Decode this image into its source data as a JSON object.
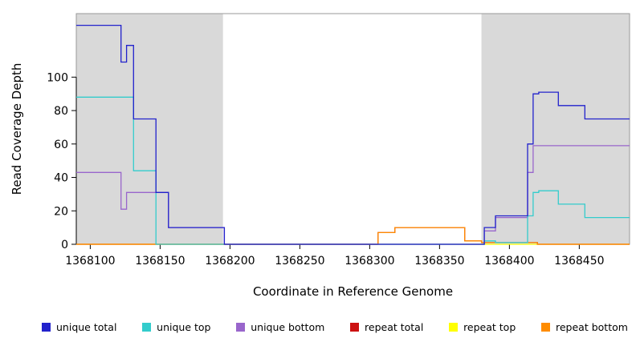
{
  "chart_data": {
    "type": "line",
    "step": true,
    "title": "",
    "xlabel": "Coordinate in Reference Genome",
    "ylabel": "Read Coverage Depth",
    "xlim": [
      1368090,
      1368486
    ],
    "ylim": [
      0,
      138
    ],
    "x_ticks": [
      1368100,
      1368150,
      1368200,
      1368250,
      1368300,
      1368350,
      1368400,
      1368450
    ],
    "y_ticks": [
      0,
      20,
      40,
      60,
      80,
      100
    ],
    "grid": false,
    "legend_position": "bottom",
    "region_color": "#D9D9D9",
    "box_color": "#999999",
    "shaded_regions": [
      {
        "from": 1368090,
        "to": 1368195
      },
      {
        "from": 1368380,
        "to": 1368486
      }
    ],
    "draw_order": [
      4,
      3,
      5,
      2,
      1,
      0
    ],
    "series": [
      {
        "name": "unique total",
        "color": "#2222CC",
        "points": [
          [
            1368090,
            131
          ],
          [
            1368122,
            131
          ],
          [
            1368122,
            109
          ],
          [
            1368126,
            109
          ],
          [
            1368126,
            119
          ],
          [
            1368131,
            119
          ],
          [
            1368131,
            75
          ],
          [
            1368147,
            75
          ],
          [
            1368147,
            31
          ],
          [
            1368156,
            31
          ],
          [
            1368156,
            10
          ],
          [
            1368196,
            10
          ],
          [
            1368196,
            0
          ],
          [
            1368382,
            0
          ],
          [
            1368382,
            10
          ],
          [
            1368390,
            10
          ],
          [
            1368390,
            17
          ],
          [
            1368413,
            17
          ],
          [
            1368413,
            60
          ],
          [
            1368417,
            60
          ],
          [
            1368417,
            90
          ],
          [
            1368421,
            90
          ],
          [
            1368421,
            91
          ],
          [
            1368435,
            91
          ],
          [
            1368435,
            83
          ],
          [
            1368454,
            83
          ],
          [
            1368454,
            75
          ],
          [
            1368486,
            75
          ]
        ]
      },
      {
        "name": "unique top",
        "color": "#33CCCC",
        "points": [
          [
            1368090,
            88
          ],
          [
            1368131,
            88
          ],
          [
            1368131,
            44
          ],
          [
            1368147,
            44
          ],
          [
            1368147,
            0
          ],
          [
            1368382,
            0
          ],
          [
            1368382,
            2
          ],
          [
            1368390,
            2
          ],
          [
            1368390,
            1
          ],
          [
            1368413,
            1
          ],
          [
            1368413,
            17
          ],
          [
            1368417,
            17
          ],
          [
            1368417,
            31
          ],
          [
            1368421,
            31
          ],
          [
            1368421,
            32
          ],
          [
            1368435,
            32
          ],
          [
            1368435,
            24
          ],
          [
            1368454,
            24
          ],
          [
            1368454,
            16
          ],
          [
            1368486,
            16
          ]
        ]
      },
      {
        "name": "unique bottom",
        "color": "#9966CC",
        "points": [
          [
            1368090,
            43
          ],
          [
            1368122,
            43
          ],
          [
            1368122,
            21
          ],
          [
            1368126,
            21
          ],
          [
            1368126,
            31
          ],
          [
            1368156,
            31
          ],
          [
            1368156,
            10
          ],
          [
            1368196,
            10
          ],
          [
            1368196,
            0
          ],
          [
            1368382,
            0
          ],
          [
            1368382,
            8
          ],
          [
            1368390,
            8
          ],
          [
            1368390,
            16
          ],
          [
            1368413,
            16
          ],
          [
            1368413,
            43
          ],
          [
            1368417,
            43
          ],
          [
            1368417,
            59
          ],
          [
            1368486,
            59
          ]
        ]
      },
      {
        "name": "repeat total",
        "color": "#CC1111",
        "points": [
          [
            1368090,
            0
          ],
          [
            1368306,
            0
          ],
          [
            1368306,
            7
          ],
          [
            1368318,
            7
          ],
          [
            1368318,
            10
          ],
          [
            1368368,
            10
          ],
          [
            1368368,
            2
          ],
          [
            1368380,
            2
          ],
          [
            1368380,
            1
          ],
          [
            1368420,
            1
          ],
          [
            1368420,
            0
          ],
          [
            1368486,
            0
          ]
        ]
      },
      {
        "name": "repeat top",
        "color": "#FFFF00",
        "points": [
          [
            1368090,
            0
          ],
          [
            1368486,
            0
          ]
        ]
      },
      {
        "name": "repeat bottom",
        "color": "#FF8C00",
        "points": [
          [
            1368090,
            0
          ],
          [
            1368306,
            0
          ],
          [
            1368306,
            7
          ],
          [
            1368318,
            7
          ],
          [
            1368318,
            10
          ],
          [
            1368368,
            10
          ],
          [
            1368368,
            2
          ],
          [
            1368380,
            2
          ],
          [
            1368380,
            1
          ],
          [
            1368420,
            1
          ],
          [
            1368420,
            0
          ],
          [
            1368486,
            0
          ]
        ]
      }
    ]
  }
}
